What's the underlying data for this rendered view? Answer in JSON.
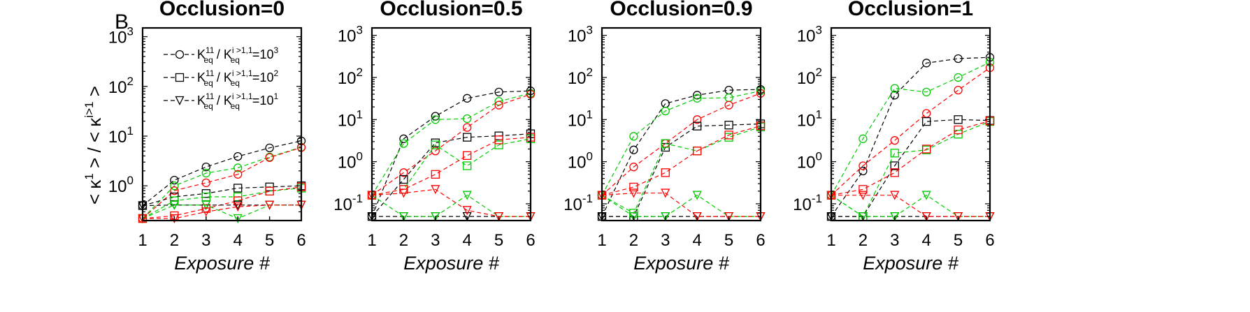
{
  "figure": {
    "panel_letter": "B",
    "ylabel_parts": [
      "< κ",
      "1",
      " > / < κ",
      "i>1",
      " >"
    ],
    "xlabel": "Exposure #",
    "legend": [
      {
        "marker": "circle",
        "pre": "K",
        "sup": "11",
        "sub": "eq",
        "mid": " / K",
        "sup2": "i >1,1",
        "sub2": "eq",
        "post": "=10",
        "exp": "3"
      },
      {
        "marker": "square",
        "pre": "K",
        "sup": "11",
        "sub": "eq",
        "mid": " / K",
        "sup2": "i >1,1",
        "sub2": "eq",
        "post": "=10",
        "exp": "2"
      },
      {
        "marker": "triangle",
        "pre": "K",
        "sup": "11",
        "sub": "eq",
        "mid": " / K",
        "sup2": "i >1,1",
        "sub2": "eq",
        "post": "=10",
        "exp": "1"
      }
    ]
  },
  "colors": {
    "black": "#000000",
    "red": "#ff0000",
    "green": "#00cc00"
  },
  "chart_data": [
    {
      "type": "line",
      "title": "Occlusion=0",
      "xlabel": "Exposure #",
      "ylabel": "< κ1 > / < κi>1 >",
      "x": [
        1,
        2,
        3,
        4,
        5,
        6
      ],
      "yscale": "log",
      "ylim": [
        0.2,
        1500
      ],
      "yticks": [
        {
          "value": 1,
          "base": "10",
          "exp": "0"
        },
        {
          "value": 10,
          "base": "10",
          "exp": "1"
        },
        {
          "value": 100,
          "base": "10",
          "exp": "2"
        },
        {
          "value": 1000,
          "base": "10",
          "exp": "3"
        }
      ],
      "series": [
        {
          "color": "black",
          "marker": "circle",
          "values": [
            0.4,
            1.3,
            2.4,
            3.9,
            5.8,
            8.0
          ]
        },
        {
          "color": "green",
          "marker": "circle",
          "values": [
            0.22,
            1.0,
            1.8,
            2.3,
            3.8,
            6.0
          ]
        },
        {
          "color": "red",
          "marker": "circle",
          "values": [
            0.22,
            0.8,
            1.15,
            1.7,
            3.7,
            5.9
          ]
        },
        {
          "color": "black",
          "marker": "square",
          "values": [
            0.4,
            0.6,
            0.7,
            0.9,
            0.95,
            1.0
          ]
        },
        {
          "color": "green",
          "marker": "square",
          "values": [
            0.22,
            0.5,
            0.6,
            0.6,
            0.78,
            0.9
          ]
        },
        {
          "color": "red",
          "marker": "square",
          "values": [
            0.22,
            0.25,
            0.35,
            0.5,
            0.78,
            0.95
          ]
        },
        {
          "color": "black",
          "marker": "triangle",
          "values": [
            0.4,
            0.41,
            0.41,
            0.41,
            0.41,
            0.41
          ]
        },
        {
          "color": "green",
          "marker": "triangle",
          "values": [
            0.22,
            0.41,
            0.41,
            0.22,
            0.41,
            0.41
          ]
        },
        {
          "color": "red",
          "marker": "triangle",
          "values": [
            0.22,
            0.22,
            0.3,
            0.38,
            0.41,
            0.41
          ]
        }
      ]
    },
    {
      "type": "line",
      "title": "Occlusion=0.5",
      "xlabel": "Exposure #",
      "x": [
        1,
        2,
        3,
        4,
        5,
        6
      ],
      "yscale": "log",
      "ylim": [
        0.04,
        1500
      ],
      "yticks": [
        {
          "value": 0.1,
          "base": "10",
          "exp": "-1"
        },
        {
          "value": 1,
          "base": "10",
          "exp": "0"
        },
        {
          "value": 10,
          "base": "10",
          "exp": "1"
        },
        {
          "value": 100,
          "base": "10",
          "exp": "2"
        },
        {
          "value": 1000,
          "base": "10",
          "exp": "3"
        }
      ],
      "series": [
        {
          "color": "black",
          "marker": "circle",
          "values": [
            0.05,
            3.5,
            12,
            32,
            45,
            48
          ]
        },
        {
          "color": "green",
          "marker": "circle",
          "values": [
            0.16,
            2.7,
            10,
            10.5,
            27,
            42
          ]
        },
        {
          "color": "red",
          "marker": "circle",
          "values": [
            0.16,
            0.55,
            1.8,
            6.5,
            22,
            40
          ]
        },
        {
          "color": "black",
          "marker": "square",
          "values": [
            0.05,
            0.38,
            2.8,
            3.8,
            4.1,
            4.6
          ]
        },
        {
          "color": "green",
          "marker": "square",
          "values": [
            0.16,
            0.22,
            2.5,
            0.8,
            2.5,
            3.5
          ]
        },
        {
          "color": "red",
          "marker": "square",
          "values": [
            0.16,
            0.22,
            0.5,
            1.4,
            3.3,
            3.8
          ]
        },
        {
          "color": "black",
          "marker": "triangle",
          "values": [
            0.05,
            0.05,
            0.05,
            0.05,
            0.05,
            0.05
          ]
        },
        {
          "color": "green",
          "marker": "triangle",
          "values": [
            0.16,
            0.05,
            0.05,
            0.16,
            0.05,
            0.05
          ]
        },
        {
          "color": "red",
          "marker": "triangle",
          "values": [
            0.16,
            0.18,
            0.22,
            0.07,
            0.05,
            0.05
          ]
        }
      ]
    },
    {
      "type": "line",
      "title": "Occlusion=0.9",
      "xlabel": "Exposure #",
      "x": [
        1,
        2,
        3,
        4,
        5,
        6
      ],
      "yscale": "log",
      "ylim": [
        0.04,
        1500
      ],
      "yticks": [
        {
          "value": 0.1,
          "base": "10",
          "exp": "-1"
        },
        {
          "value": 1,
          "base": "10",
          "exp": "0"
        },
        {
          "value": 10,
          "base": "10",
          "exp": "1"
        },
        {
          "value": 100,
          "base": "10",
          "exp": "2"
        },
        {
          "value": 1000,
          "base": "10",
          "exp": "3"
        }
      ],
      "series": [
        {
          "color": "black",
          "marker": "circle",
          "values": [
            0.05,
            1.9,
            24,
            38,
            50,
            52
          ]
        },
        {
          "color": "green",
          "marker": "circle",
          "values": [
            0.16,
            4.0,
            16,
            32,
            33,
            48
          ]
        },
        {
          "color": "red",
          "marker": "circle",
          "values": [
            0.16,
            0.75,
            2.7,
            10,
            22,
            42
          ]
        },
        {
          "color": "black",
          "marker": "square",
          "values": [
            0.05,
            0.05,
            2.2,
            7.0,
            7.4,
            7.9
          ]
        },
        {
          "color": "green",
          "marker": "square",
          "values": [
            0.16,
            0.06,
            2.7,
            1.8,
            3.8,
            6.7
          ]
        },
        {
          "color": "red",
          "marker": "square",
          "values": [
            0.16,
            0.25,
            0.55,
            1.8,
            4.3,
            7.1
          ]
        },
        {
          "color": "black",
          "marker": "triangle",
          "values": [
            0.05,
            0.05,
            0.05,
            0.05,
            0.05,
            0.05
          ]
        },
        {
          "color": "green",
          "marker": "triangle",
          "values": [
            0.16,
            0.05,
            0.05,
            0.16,
            0.05,
            0.05
          ]
        },
        {
          "color": "red",
          "marker": "triangle",
          "values": [
            0.16,
            0.18,
            0.18,
            0.05,
            0.05,
            0.05
          ]
        }
      ]
    },
    {
      "type": "line",
      "title": "Occlusion=1",
      "xlabel": "Exposure #",
      "x": [
        1,
        2,
        3,
        4,
        5,
        6
      ],
      "yscale": "log",
      "ylim": [
        0.04,
        1500
      ],
      "yticks": [
        {
          "value": 0.1,
          "base": "10",
          "exp": "-1"
        },
        {
          "value": 1,
          "base": "10",
          "exp": "0"
        },
        {
          "value": 10,
          "base": "10",
          "exp": "1"
        },
        {
          "value": 100,
          "base": "10",
          "exp": "2"
        },
        {
          "value": 1000,
          "base": "10",
          "exp": "3"
        }
      ],
      "series": [
        {
          "color": "black",
          "marker": "circle",
          "values": [
            0.05,
            0.6,
            38,
            220,
            280,
            300
          ]
        },
        {
          "color": "green",
          "marker": "circle",
          "values": [
            0.16,
            3.5,
            55,
            45,
            100,
            230
          ]
        },
        {
          "color": "red",
          "marker": "circle",
          "values": [
            0.16,
            0.8,
            3.2,
            14,
            50,
            170
          ]
        },
        {
          "color": "black",
          "marker": "square",
          "values": [
            0.05,
            0.05,
            0.8,
            9.0,
            10,
            9.5
          ]
        },
        {
          "color": "green",
          "marker": "square",
          "values": [
            0.16,
            0.05,
            1.6,
            1.9,
            4.5,
            9.0
          ]
        },
        {
          "color": "red",
          "marker": "square",
          "values": [
            0.16,
            0.22,
            0.55,
            2.0,
            5.7,
            9.3
          ]
        },
        {
          "color": "black",
          "marker": "triangle",
          "values": [
            0.05,
            0.05,
            0.05,
            0.05,
            0.05,
            0.05
          ]
        },
        {
          "color": "green",
          "marker": "triangle",
          "values": [
            0.16,
            0.05,
            0.05,
            0.16,
            0.05,
            0.05
          ]
        },
        {
          "color": "red",
          "marker": "triangle",
          "values": [
            0.16,
            0.16,
            0.16,
            0.05,
            0.05,
            0.05
          ]
        }
      ]
    }
  ]
}
